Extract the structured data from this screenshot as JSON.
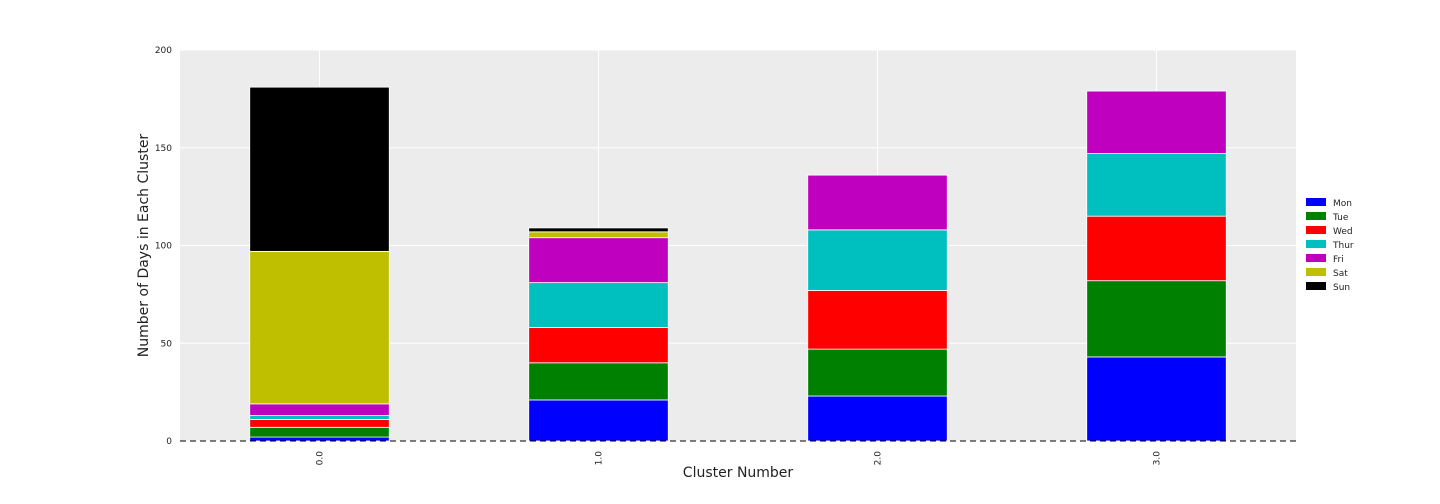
{
  "chart_data": {
    "type": "bar",
    "stacked": true,
    "title": "",
    "xlabel": "Cluster Number",
    "ylabel": "Number of Days in Each Cluster",
    "categories": [
      "0.0",
      "1.0",
      "2.0",
      "3.0"
    ],
    "ylim": [
      0,
      200
    ],
    "yticks": [
      0,
      50,
      100,
      150,
      200
    ],
    "grid": true,
    "legend_position": "right",
    "baseline": {
      "style": "dashed",
      "value": 0,
      "color": "#000000"
    },
    "series": [
      {
        "name": "Mon",
        "color": "#0000ff",
        "values": [
          2,
          21,
          23,
          43
        ]
      },
      {
        "name": "Tue",
        "color": "#008000",
        "values": [
          5,
          19,
          24,
          39
        ]
      },
      {
        "name": "Wed",
        "color": "#ff0000",
        "values": [
          4,
          18,
          30,
          33
        ]
      },
      {
        "name": "Thur",
        "color": "#00bfbf",
        "values": [
          2,
          23,
          31,
          32
        ]
      },
      {
        "name": "Fri",
        "color": "#bf00bf",
        "values": [
          6,
          23,
          28,
          32
        ]
      },
      {
        "name": "Sat",
        "color": "#bfbf00",
        "values": [
          78,
          3,
          0,
          0
        ]
      },
      {
        "name": "Sun",
        "color": "#000000",
        "values": [
          84,
          2,
          0,
          0
        ]
      }
    ]
  }
}
